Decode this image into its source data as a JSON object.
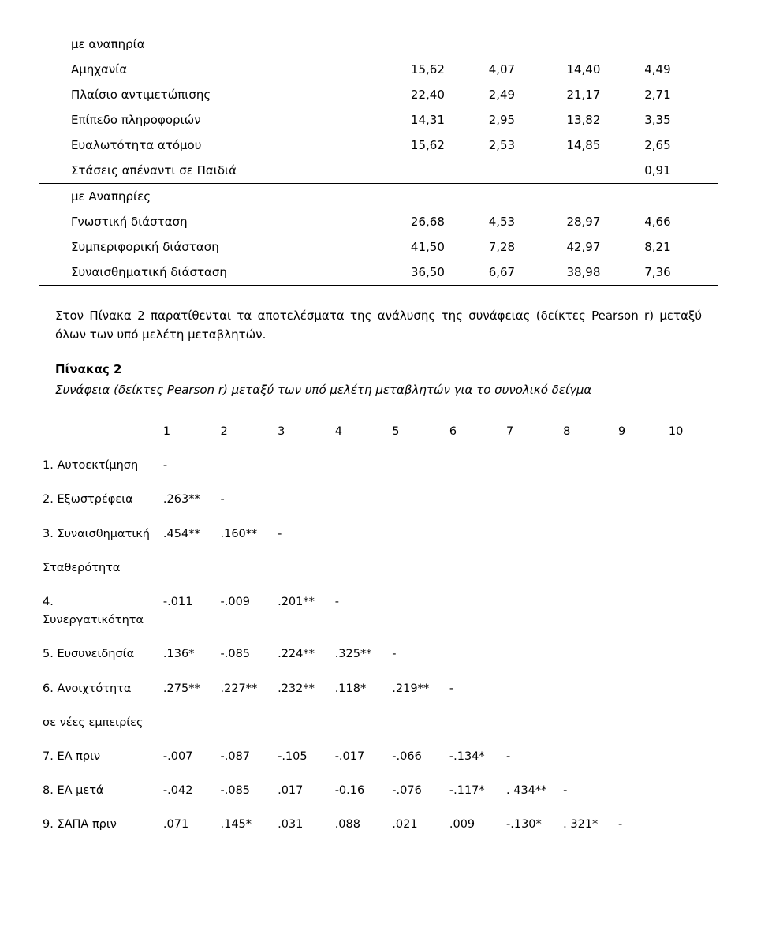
{
  "table1": {
    "rows": [
      {
        "label": "με αναπηρία",
        "v": [
          "",
          "",
          "",
          ""
        ]
      },
      {
        "label": "Αμηχανία",
        "v": [
          "15,62",
          "4,07",
          "14,40",
          "4,49"
        ]
      },
      {
        "label": "Πλαίσιο αντιμετώπισης",
        "v": [
          "22,40",
          "2,49",
          "21,17",
          "2,71"
        ]
      },
      {
        "label": "Επίπεδο πληροφοριών",
        "v": [
          "14,31",
          "2,95",
          "13,82",
          "3,35"
        ]
      },
      {
        "label": "Ευαλωτότητα ατόμου",
        "v": [
          "15,62",
          "2,53",
          "14,85",
          "2,65"
        ]
      },
      {
        "label": "Στάσεις απέναντι σε Παιδιά",
        "v": [
          "",
          "",
          "",
          "0,91"
        ],
        "sep": true
      },
      {
        "label": "με Αναπηρίες",
        "v": [
          "",
          "",
          "",
          ""
        ]
      },
      {
        "label": "Γνωστική διάσταση",
        "v": [
          "26,68",
          "4,53",
          "28,97",
          "4,66"
        ]
      },
      {
        "label": "Συμπεριφορική διάσταση",
        "v": [
          "41,50",
          "7,28",
          "42,97",
          "8,21"
        ]
      },
      {
        "label": "Συναισθηματική διάσταση",
        "v": [
          "36,50",
          "6,67",
          "38,98",
          "7,36"
        ],
        "sep": true
      }
    ]
  },
  "para": "Στον Πίνακα 2 παρατίθενται τα αποτελέσματα της ανάλυσης της συνάφειας  (δείκτες Pearson r) μεταξύ όλων των υπό μελέτη μεταβλητών.",
  "table2_title": "Πίνακας 2",
  "table2_sub": "Συνάφεια (δείκτες Pearson r) μεταξύ των υπό μελέτη μεταβλητών για το συνολικό δείγμα",
  "table2": {
    "cols": [
      "1",
      "2",
      "3",
      "4",
      "5",
      "6",
      "7",
      "8",
      "9",
      "10"
    ],
    "rows": [
      {
        "label": "1. Αυτοεκτίμηση",
        "cells": [
          "-",
          "",
          "",
          "",
          "",
          "",
          "",
          "",
          "",
          ""
        ]
      },
      {
        "label": "2. Εξωστρέφεια",
        "cells": [
          ".263**",
          "-",
          "",
          "",
          "",
          "",
          "",
          "",
          "",
          ""
        ]
      },
      {
        "label": "3. Συναισθηματική",
        "cells": [
          ".454**",
          ".160**",
          "-",
          "",
          "",
          "",
          "",
          "",
          "",
          ""
        ]
      },
      {
        "label": "Σταθερότητα",
        "cells": [
          "",
          "",
          "",
          "",
          "",
          "",
          "",
          "",
          "",
          ""
        ]
      },
      {
        "label": "4. Συνεργατικότητα",
        "cells": [
          "-.011",
          "-.009",
          ".201**",
          "-",
          "",
          "",
          "",
          "",
          "",
          ""
        ]
      },
      {
        "label": "5. Ευσυνειδησία",
        "cells": [
          ".136*",
          "-.085",
          ".224**",
          ".325**",
          "-",
          "",
          "",
          "",
          "",
          ""
        ]
      },
      {
        "label": "6. Ανοιχτότητα",
        "cells": [
          ".275**",
          ".227**",
          ".232**",
          ".118*",
          ".219**",
          "-",
          "",
          "",
          "",
          ""
        ]
      },
      {
        "label": "σε νέες εμπειρίες",
        "cells": [
          "",
          "",
          "",
          "",
          "",
          "",
          "",
          "",
          "",
          ""
        ]
      },
      {
        "label": "7. ΕΑ πριν",
        "cells": [
          "-.007",
          "-.087",
          "-.105",
          "-.017",
          "-.066",
          "-.134*",
          "-",
          "",
          "",
          ""
        ]
      },
      {
        "label": "8. ΕΑ μετά",
        "cells": [
          "-.042",
          "-.085",
          ".017",
          "-0.16",
          "-.076",
          "-.117*",
          ". 434**",
          "-",
          "",
          ""
        ]
      },
      {
        "label": "9. ΣΑΠΑ πριν",
        "cells": [
          ".071",
          ".145*",
          ".031",
          ".088",
          ".021",
          ".009",
          "-.130*",
          ". 321*",
          "-",
          ""
        ]
      }
    ]
  }
}
